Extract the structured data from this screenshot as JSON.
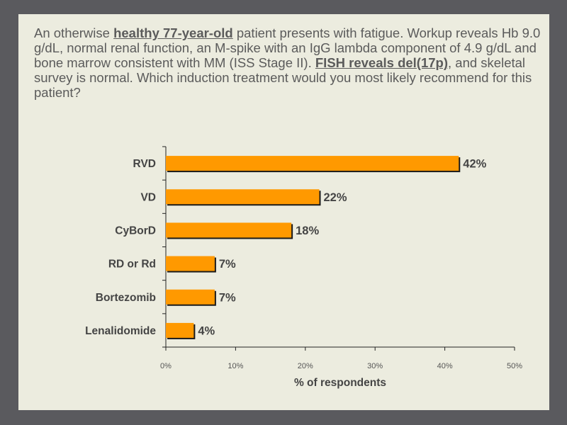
{
  "question": {
    "p1": "An otherwise ",
    "b1": "healthy 77-year-old",
    "p2": " patient presents with fatigue. Workup reveals Hb 9.0 g/dL, normal renal function, an M-spike with an IgG lambda component of 4.9 g/dL and bone marrow consistent with MM (ISS Stage II). ",
    "b2": "FISH reveals del(17p)",
    "p3": ", and skeletal survey is normal. Which induction treatment would you most likely recommend for this patient?"
  },
  "colors": {
    "bar": "#ff9900",
    "bar_edge": "#1a1a1a",
    "slide_bg": "#ececdf",
    "frame": "#5a5a5e"
  },
  "chart_data": {
    "type": "bar",
    "orientation": "horizontal",
    "categories": [
      "RVD",
      "VD",
      "CyBorD",
      "RD or Rd",
      "Bortezomib",
      "Lenalidomide"
    ],
    "values": [
      42,
      22,
      18,
      7,
      7,
      4
    ],
    "value_labels": [
      "42%",
      "22%",
      "18%",
      "7%",
      "7%",
      "4%"
    ],
    "xlim": [
      0,
      50
    ],
    "xticks": [
      "0%",
      "10%",
      "20%",
      "30%",
      "40%",
      "50%"
    ],
    "xlabel": "% of respondents",
    "grid": false
  }
}
